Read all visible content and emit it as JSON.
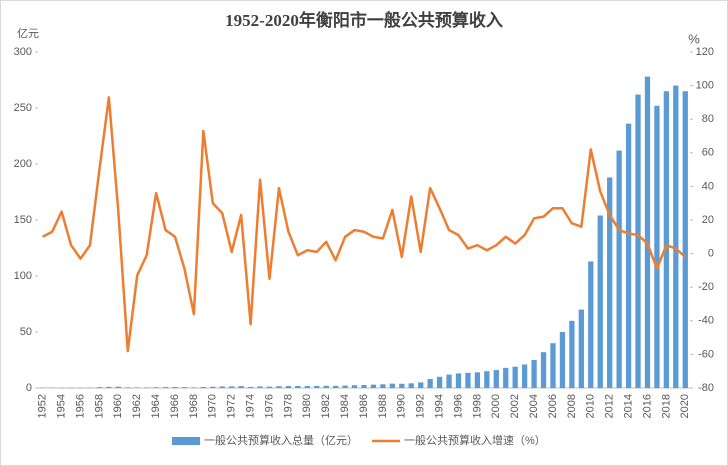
{
  "chart_data": {
    "type": "bar-line",
    "title": "1952-2020年衡阳市一般公共预算收入",
    "y_label": "亿元",
    "y2_label": "%",
    "categories": [
      "1952",
      null,
      "1954",
      null,
      "1956",
      null,
      "1958",
      null,
      "1960",
      null,
      "1962",
      null,
      "1964",
      null,
      "1966",
      null,
      "1968",
      null,
      "1970",
      null,
      "1972",
      null,
      "1974",
      null,
      "1976",
      null,
      "1978",
      null,
      "1980",
      null,
      "1982",
      null,
      "1984",
      null,
      "1986",
      null,
      "1988",
      null,
      "1990",
      null,
      "1992",
      null,
      "1994",
      null,
      "1996",
      null,
      "1998",
      null,
      "2000",
      null,
      "2002",
      null,
      "2004",
      null,
      "2006",
      null,
      "2008",
      null,
      "2010",
      null,
      "2012",
      null,
      "2014",
      null,
      "2016",
      null,
      "2018",
      null,
      "2020"
    ],
    "series": [
      {
        "name": "一般公共预算收入总量（亿元）",
        "color": "#5b9bd5",
        "kind": "bar",
        "values": [
          0.3,
          0.3,
          0.3,
          0.3,
          0.3,
          0.3,
          0.8,
          1,
          1.2,
          0.6,
          0.5,
          0.5,
          0.7,
          0.8,
          0.9,
          0.8,
          0.5,
          0.9,
          1.1,
          1.4,
          1.4,
          1.7,
          1.0,
          1.4,
          1.2,
          1.6,
          1.8,
          1.8,
          1.8,
          1.9,
          2.0,
          1.9,
          2.2,
          2.5,
          2.7,
          3.0,
          3.3,
          3.9,
          3.8,
          4.2,
          5,
          8,
          10,
          12,
          13,
          13.5,
          14,
          15,
          16,
          18,
          19,
          21,
          25,
          32,
          40,
          50,
          60,
          70,
          113,
          154,
          188,
          212,
          236,
          262,
          278,
          252,
          265,
          270,
          265
        ]
      },
      {
        "name": "一般公共预算收入增速（%）",
        "color": "#ed7d31",
        "kind": "line",
        "axis": "y2",
        "values": [
          10,
          13,
          25,
          5,
          -3,
          5,
          50,
          93,
          25,
          -58,
          -13,
          -1,
          36,
          14,
          10,
          -9,
          -36,
          73,
          30,
          24,
          1,
          23,
          -42,
          44,
          -15,
          39,
          13,
          -1,
          2,
          1,
          7,
          -4,
          10,
          14,
          13,
          10,
          9,
          26,
          -2,
          34,
          1,
          39,
          27,
          14,
          11,
          3,
          5,
          2,
          5,
          10,
          6,
          11,
          21,
          22,
          27,
          27,
          18,
          16,
          62,
          37,
          23,
          14,
          12,
          11,
          6,
          -9,
          5,
          3,
          -2
        ]
      }
    ],
    "ylim": [
      0,
      300
    ],
    "yticks": [
      0,
      50,
      100,
      150,
      200,
      250,
      300
    ],
    "y2lim": [
      -80,
      120
    ],
    "y2ticks": [
      -80,
      -60,
      -40,
      -20,
      0,
      20,
      40,
      60,
      80,
      100,
      120
    ],
    "grid": false,
    "legend": "bottom"
  }
}
